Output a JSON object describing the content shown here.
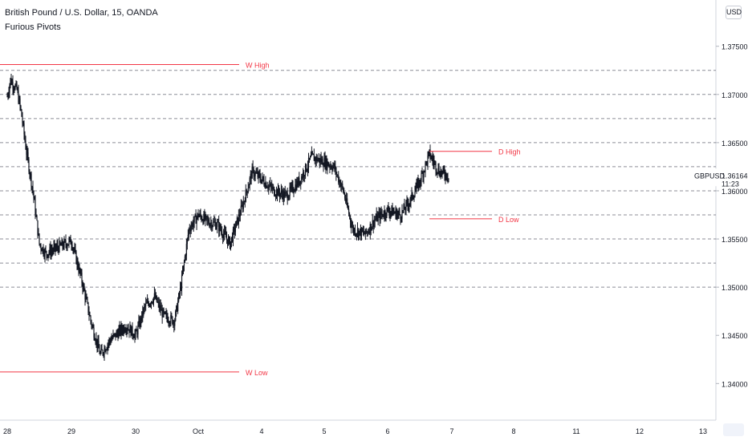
{
  "header": {
    "title": "British Pound / U.S. Dollar, 15, OANDA",
    "indicator": "Furious Pivots"
  },
  "currency_badge": "USD",
  "colors": {
    "candle": "#131722",
    "pivot": "#f23645",
    "grid": "#787b86",
    "axis": "#131722",
    "background": "#ffffff"
  },
  "chart_data": {
    "type": "candlestick",
    "symbol": "GBPUSD",
    "last_price": 1.36164,
    "last_price_label": "1.36164",
    "countdown": "11:23",
    "ylim": [
      1.3362,
      1.3798
    ],
    "y_ticks": [
      {
        "value": 1.375,
        "label": "1.37500"
      },
      {
        "value": 1.37,
        "label": "1.37000"
      },
      {
        "value": 1.365,
        "label": "1.36500"
      },
      {
        "value": 1.36,
        "label": "1.36000"
      },
      {
        "value": 1.355,
        "label": "1.35500"
      },
      {
        "value": 1.35,
        "label": "1.35000"
      },
      {
        "value": 1.345,
        "label": "1.34500"
      },
      {
        "value": 1.34,
        "label": "1.34000"
      }
    ],
    "x_ticks": [
      "28",
      "29",
      "30",
      "Oct",
      "4",
      "5",
      "6",
      "7",
      "8",
      "11",
      "12",
      "13"
    ],
    "pivot_levels": [
      1.3725,
      1.37,
      1.3675,
      1.365,
      1.3625,
      1.36,
      1.3575,
      1.355,
      1.3525,
      1.35
    ],
    "pivot_lines": [
      {
        "label": "W High",
        "value": 1.3731
      },
      {
        "label": "W Low",
        "value": 1.3412
      },
      {
        "label": "D High",
        "value": 1.3641
      },
      {
        "label": "D Low",
        "value": 1.3571
      }
    ],
    "price_path": [
      [
        0,
        1.3698
      ],
      [
        0.05,
        1.3715
      ],
      [
        0.15,
        1.3705
      ],
      [
        0.22,
        1.368
      ],
      [
        0.3,
        1.364
      ],
      [
        0.4,
        1.36
      ],
      [
        0.5,
        1.3545
      ],
      [
        0.6,
        1.3535
      ],
      [
        0.75,
        1.354
      ],
      [
        1.0,
        1.3548
      ],
      [
        1.15,
        1.351
      ],
      [
        1.3,
        1.3465
      ],
      [
        1.45,
        1.343
      ],
      [
        1.6,
        1.3445
      ],
      [
        1.85,
        1.346
      ],
      [
        2.0,
        1.345
      ],
      [
        2.15,
        1.348
      ],
      [
        2.3,
        1.349
      ],
      [
        2.45,
        1.347
      ],
      [
        2.62,
        1.3465
      ],
      [
        2.72,
        1.35
      ],
      [
        2.85,
        1.356
      ],
      [
        3.0,
        1.3575
      ],
      [
        3.15,
        1.3568
      ],
      [
        3.3,
        1.3565
      ],
      [
        3.5,
        1.3545
      ],
      [
        3.7,
        1.3585
      ],
      [
        3.85,
        1.362
      ],
      [
        4.0,
        1.3612
      ],
      [
        4.2,
        1.36
      ],
      [
        4.4,
        1.3595
      ],
      [
        4.6,
        1.361
      ],
      [
        4.8,
        1.3635
      ],
      [
        5.0,
        1.363
      ],
      [
        5.15,
        1.3625
      ],
      [
        5.3,
        1.36
      ],
      [
        5.45,
        1.356
      ],
      [
        5.65,
        1.3555
      ],
      [
        5.8,
        1.357
      ],
      [
        6.0,
        1.358
      ],
      [
        6.2,
        1.3575
      ],
      [
        6.35,
        1.359
      ],
      [
        6.5,
        1.361
      ],
      [
        6.65,
        1.3638
      ],
      [
        6.8,
        1.362
      ],
      [
        6.95,
        1.3616
      ]
    ]
  }
}
